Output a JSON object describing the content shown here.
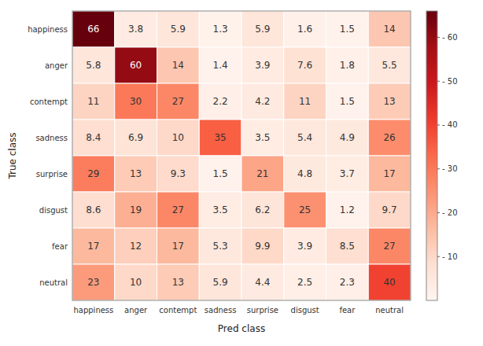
{
  "chart_data": {
    "type": "heatmap",
    "categories": [
      "happiness",
      "anger",
      "contempt",
      "sadness",
      "surprise",
      "disgust",
      "fear",
      "neutral"
    ],
    "values": [
      [
        66,
        3.8,
        5.9,
        1.3,
        5.9,
        1.6,
        1.5,
        14
      ],
      [
        5.8,
        60,
        14,
        1.4,
        3.9,
        7.6,
        1.8,
        5.5
      ],
      [
        11,
        30,
        27,
        2.2,
        4.2,
        11,
        1.5,
        13
      ],
      [
        8.4,
        6.9,
        10,
        35,
        3.5,
        5.4,
        4.9,
        26
      ],
      [
        29,
        13,
        9.3,
        1.5,
        21,
        4.8,
        3.7,
        17
      ],
      [
        8.6,
        19,
        27,
        3.5,
        6.2,
        25,
        1.2,
        9.7
      ],
      [
        17,
        12,
        17,
        5.3,
        9.9,
        3.9,
        8.5,
        27
      ],
      [
        23,
        10,
        13,
        5.9,
        4.4,
        2.5,
        2.3,
        40
      ]
    ],
    "xlabel": "Pred class",
    "ylabel": "True class",
    "colorbar_range": [
      0,
      66
    ],
    "colorbar_ticks": [
      {
        "value": 10,
        "label": "- 10"
      },
      {
        "value": 20,
        "label": "- 20"
      },
      {
        "value": 30,
        "label": "- 30"
      },
      {
        "value": 40,
        "label": "- 40"
      },
      {
        "value": 50,
        "label": "- 50"
      },
      {
        "value": 60,
        "label": "- 60"
      }
    ],
    "data_labels": true
  }
}
